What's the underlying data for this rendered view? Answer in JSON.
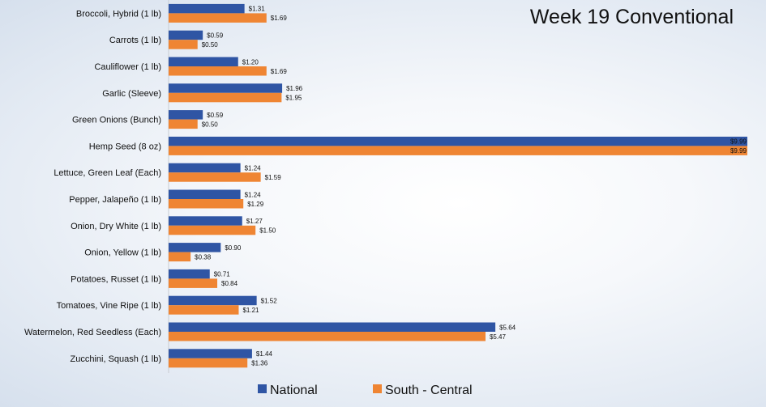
{
  "chart_data": {
    "type": "bar",
    "orientation": "horizontal",
    "title": "Week 19 Conventional",
    "xlabel": "",
    "ylabel": "",
    "xlim": [
      0,
      9.99
    ],
    "legend_position": "bottom",
    "grid": false,
    "categories": [
      "Broccoli, Hybrid (1 lb)",
      "Carrots (1 lb)",
      "Cauliflower (1 lb)",
      "Garlic (Sleeve)",
      "Green Onions (Bunch)",
      "Hemp Seed (8 oz)",
      "Lettuce, Green Leaf (Each)",
      "Pepper, Jalapeño (1 lb)",
      "Onion, Dry White (1 lb)",
      "Onion, Yellow (1 lb)",
      "Potatoes, Russet (1 lb)",
      "Tomatoes, Vine Ripe (1 lb)",
      "Watermelon, Red Seedless (Each)",
      "Zucchini, Squash (1 lb)"
    ],
    "series": [
      {
        "name": "National",
        "color": "#2f55a4",
        "values": [
          1.31,
          0.59,
          1.2,
          1.96,
          0.59,
          9.99,
          1.24,
          1.24,
          1.27,
          0.9,
          0.71,
          1.52,
          5.64,
          1.44
        ],
        "labels": [
          "$1.31",
          "$0.59",
          "$1.20",
          "$1.96",
          "$0.59",
          "$9.99",
          "$1.24",
          "$1.24",
          "$1.27",
          "$0.90",
          "$0.71",
          "$1.52",
          "$5.64",
          "$1.44"
        ]
      },
      {
        "name": "South - Central",
        "color": "#ef8533",
        "values": [
          1.69,
          0.5,
          1.69,
          1.95,
          0.5,
          9.99,
          1.59,
          1.29,
          1.5,
          0.38,
          0.84,
          1.21,
          5.47,
          1.36
        ],
        "labels": [
          "$1.69",
          "$0.50",
          "$1.69",
          "$1.95",
          "$0.50",
          "$9.99",
          "$1.59",
          "$1.29",
          "$1.50",
          "$0.38",
          "$0.84",
          "$1.21",
          "$5.47",
          "$1.36"
        ]
      }
    ]
  }
}
